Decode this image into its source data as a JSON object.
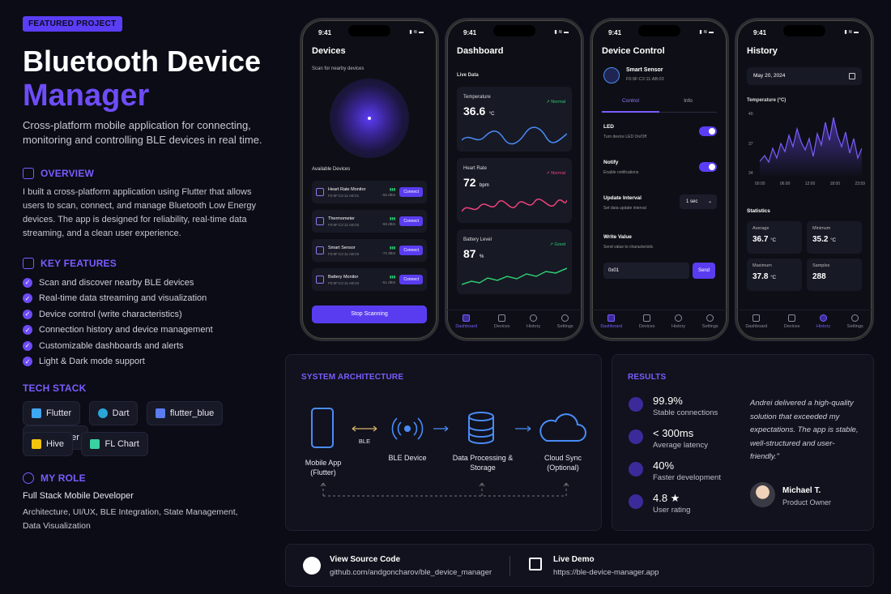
{
  "badge": "FEATURED PROJECT",
  "title_line1": "Bluetooth Device",
  "title_line2": "Manager",
  "subtitle": "Cross-platform mobile application for connecting, monitoring and controlling BLE devices in real time.",
  "overview": {
    "heading": "OVERVIEW",
    "text": "I built a cross-platform application using Flutter that allows users to scan, connect, and manage Bluetooth Low Energy devices. The app is designed for reliability, real-time data streaming, and a clean user experience."
  },
  "features": {
    "heading": "KEY FEATURES",
    "items": [
      "Scan and discover nearby BLE devices",
      "Real-time data streaming and visualization",
      "Device control (write characteristics)",
      "Connection history and device management",
      "Customizable dashboards and alerts",
      "Light & Dark mode support"
    ]
  },
  "tech": {
    "heading": "TECH STACK",
    "items": [
      {
        "label": "Flutter",
        "color": "#3fa6f0"
      },
      {
        "label": "Dart",
        "color": "#2aa5d8"
      },
      {
        "label": "flutter_blue",
        "color": "#5a7cf0"
      },
      {
        "label": "Provider",
        "color": "#7b5cff"
      },
      {
        "label": "Hive",
        "color": "#f2c40f"
      },
      {
        "label": "FL Chart",
        "color": "#3ad29f"
      }
    ]
  },
  "role": {
    "heading": "MY ROLE",
    "title": "Full Stack Mobile Developer",
    "detail": "Architecture, UI/UX, BLE Integration, State Management, Data Visualization"
  },
  "phone_common": {
    "time": "9:41",
    "status": "▮ ≋ ▬"
  },
  "phone1": {
    "title": "Devices",
    "scan_hint": "Scan for nearby devices",
    "available": "Available Devices",
    "devices": [
      {
        "name": "Heart Rate Monitor",
        "mac": "F0:9F:C2:11:AB:01",
        "rssi": "-55 dBm"
      },
      {
        "name": "Thermometer",
        "mac": "F0:9F:C2:11:AB:02",
        "rssi": "-68 dBm"
      },
      {
        "name": "Smart Sensor",
        "mac": "F0:9F:C2:11:AB:03",
        "rssi": "-72 dBm"
      },
      {
        "name": "Battery Monitor",
        "mac": "F0:9F:C2:11:AB:04",
        "rssi": "-61 dBm"
      }
    ],
    "connect": "Connect",
    "stop": "Stop Scanning"
  },
  "phone2": {
    "title": "Dashboard",
    "live": "Live Data",
    "cards": [
      {
        "label": "Temperature",
        "value": "36.6",
        "unit": "°C",
        "status": "↗ Normal",
        "color": "#4a8cf7",
        "status_color": "#2ecc71"
      },
      {
        "label": "Heart Rate",
        "value": "72",
        "unit": "bpm",
        "status": "↗ Normal",
        "color": "#f0437b",
        "status_color": "#f0437b"
      },
      {
        "label": "Battery Level",
        "value": "87",
        "unit": "%",
        "status": "↗ Good",
        "color": "#2ecc71",
        "status_color": "#2ecc71"
      }
    ]
  },
  "phone3": {
    "title": "Device Control",
    "device": "Smart Sensor",
    "mac": "F0:9F:C2:11:AB:03",
    "tab_control": "Control",
    "tab_info": "Info",
    "led": "LED",
    "led_sub": "Turn device LED On/Off",
    "notify": "Notify",
    "notify_sub": "Enable notifications",
    "interval": "Update Interval",
    "interval_sub": "Set data update interval",
    "interval_val": "1 sec",
    "write": "Write Value",
    "write_sub": "Send value to characteristic",
    "write_val": "0x01",
    "send": "Send"
  },
  "phone4": {
    "title": "History",
    "date": "May 20, 2024",
    "chart_label": "Temperature (°C)",
    "yticks": [
      "40",
      "37",
      "34"
    ],
    "xticks": [
      "00:00",
      "06:00",
      "12:00",
      "18:00",
      "23:59"
    ],
    "stats_label": "Statistics",
    "stats": [
      {
        "label": "Average",
        "value": "36.7",
        "unit": "°C"
      },
      {
        "label": "Minimum",
        "value": "35.2",
        "unit": "°C"
      },
      {
        "label": "Maximum",
        "value": "37.8",
        "unit": "°C"
      },
      {
        "label": "Samples",
        "value": "288",
        "unit": ""
      }
    ]
  },
  "tabs": [
    "Dashboard",
    "Devices",
    "History",
    "Settings"
  ],
  "architecture": {
    "heading": "SYSTEM ARCHITECTURE",
    "nodes": [
      "Mobile App (Flutter)",
      "BLE Device",
      "Data Processing & Storage",
      "Cloud Sync (Optional)"
    ],
    "link_label": "BLE"
  },
  "results": {
    "heading": "RESULTS",
    "items": [
      {
        "value": "99.9%",
        "label": "Stable connections"
      },
      {
        "value": "< 300ms",
        "label": "Average latency"
      },
      {
        "value": "40%",
        "label": "Faster development"
      },
      {
        "value": "4.8 ★",
        "label": "User rating"
      }
    ],
    "quote": "Andrei delivered a high-quality solution that exceeded my expectations. The app is stable, well-structured and user-friendly.\"",
    "author": "Michael T.",
    "author_role": "Product Owner"
  },
  "links": {
    "source_label": "View Source Code",
    "source_url": "github.com/andgoncharov/ble_device_manager",
    "demo_label": "Live Demo",
    "demo_url": "https://ble-device-manager.app"
  }
}
